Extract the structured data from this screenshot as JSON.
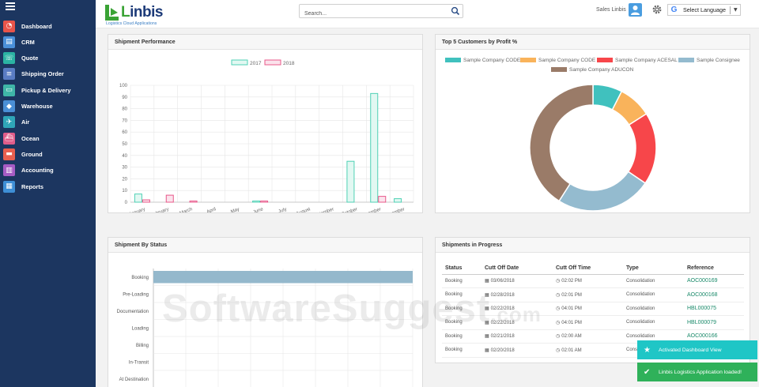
{
  "sidebar": {
    "items": [
      {
        "label": "Dashboard",
        "icon": "dashboard-icon",
        "color": "#e8544a",
        "glyph": "◔"
      },
      {
        "label": "CRM",
        "icon": "crm-icon",
        "color": "#4a90d9",
        "glyph": "▤"
      },
      {
        "label": "Quote",
        "icon": "quote-icon",
        "color": "#2bb3a3",
        "glyph": "☏"
      },
      {
        "label": "Shipping Order",
        "icon": "shipping-order-icon",
        "color": "#5a7dc4",
        "glyph": "≡"
      },
      {
        "label": "Pickup & Delivery",
        "icon": "pickup-delivery-icon",
        "color": "#3fb6a8",
        "glyph": "▭"
      },
      {
        "label": "Warehouse",
        "icon": "warehouse-icon",
        "color": "#4a8fd6",
        "glyph": "◆"
      },
      {
        "label": "Air",
        "icon": "air-icon",
        "color": "#2fa6b8",
        "glyph": "✈"
      },
      {
        "label": "Ocean",
        "icon": "ocean-icon",
        "color": "#e05d8a",
        "glyph": "⛴"
      },
      {
        "label": "Ground",
        "icon": "ground-icon",
        "color": "#e85f4f",
        "glyph": "▬"
      },
      {
        "label": "Accounting",
        "icon": "accounting-icon",
        "color": "#a65cc4",
        "glyph": "▥"
      },
      {
        "label": "Reports",
        "icon": "reports-icon",
        "color": "#3e8fd6",
        "glyph": "▦"
      }
    ]
  },
  "header": {
    "logo_text_l": "L",
    "logo_text_rest": "inbis",
    "logo_subtitle": "Logistics Cloud Applications",
    "search_placeholder": "Search...",
    "user_name": "Sales Linbis",
    "language_label": "Select Language"
  },
  "panels": {
    "shipment_performance": "Shipment Performance",
    "top_customers": "Top 5 Customers by Profit %",
    "shipment_by_status": "Shipment By Status",
    "shipments_in_progress": "Shipments in Progress"
  },
  "chart_data": [
    {
      "type": "bar",
      "categories": [
        "January",
        "February",
        "March",
        "April",
        "May",
        "June",
        "July",
        "August",
        "September",
        "October",
        "November",
        "December"
      ],
      "series": [
        {
          "name": "2017",
          "values": [
            7,
            0,
            0,
            0,
            0,
            1,
            0,
            0,
            0,
            35,
            93,
            3
          ],
          "color": "#4fd1b5",
          "fill": "#e2f8f2"
        },
        {
          "name": "2018",
          "values": [
            2,
            6,
            1,
            0,
            0,
            1,
            0,
            0,
            0,
            0,
            5,
            0
          ],
          "color": "#e8588a",
          "fill": "#fbe3ec"
        }
      ],
      "yticks": [
        "0",
        "10",
        "20",
        "30",
        "40",
        "50",
        "60",
        "70",
        "80",
        "90",
        "100"
      ],
      "ylim": [
        0,
        100
      ],
      "grid": true,
      "legend": "top-center"
    },
    {
      "type": "pie",
      "labels": [
        "Sample Company CODE",
        "Sample Company CODE",
        "Sample Company ACESAL",
        "Sample Consignee",
        "Sample Company ADUCON"
      ],
      "values": [
        7.5,
        8.5,
        18.5,
        24.5,
        41
      ],
      "colors": [
        "#40c1be",
        "#f9b35b",
        "#f7464a",
        "#94bbcf",
        "#9a7b68"
      ],
      "legend": "top"
    },
    {
      "type": "bar",
      "orientation": "horizontal",
      "categories": [
        "Booking",
        "Pre-Loading",
        "Documentation",
        "Loading",
        "Billing",
        "In-Transit",
        "At Destination"
      ],
      "values": [
        8,
        0,
        0,
        0,
        0,
        0,
        0
      ],
      "xlim": [
        0,
        8
      ],
      "color": "#94b8cc",
      "grid": true
    }
  ],
  "table": {
    "headers": [
      "Status",
      "Cutt Off Date",
      "Cutt Off Time",
      "Type",
      "Reference"
    ],
    "rows": [
      [
        "Booking",
        "03/06/2018",
        "02:02 PM",
        "Consolidation",
        "AOC000169"
      ],
      [
        "Booking",
        "02/28/2018",
        "02:01 PM",
        "Consolidation",
        "AOC000168"
      ],
      [
        "Booking",
        "02/22/2018",
        "04:01 PM",
        "Consolidation",
        "HBL000075"
      ],
      [
        "Booking",
        "02/22/2018",
        "04:01 PM",
        "Consolidation",
        "HBL000079"
      ],
      [
        "Booking",
        "02/21/2018",
        "02:00 AM",
        "Consolidation",
        "AOC000166"
      ],
      [
        "Booking",
        "02/20/2018",
        "02:01 AM",
        "Consolidation",
        ""
      ]
    ]
  },
  "toasts": [
    {
      "text": "Activated Dashboard View",
      "color": "#1fc6c6",
      "icon": "star-icon",
      "glyph": "★"
    },
    {
      "text": "Linbis Logistics Application loaded!",
      "color": "#2fb15a",
      "icon": "checkmark-icon",
      "glyph": "✔"
    }
  ],
  "watermark": {
    "main": "SoftwareSuggest",
    "suffix": ".com"
  }
}
